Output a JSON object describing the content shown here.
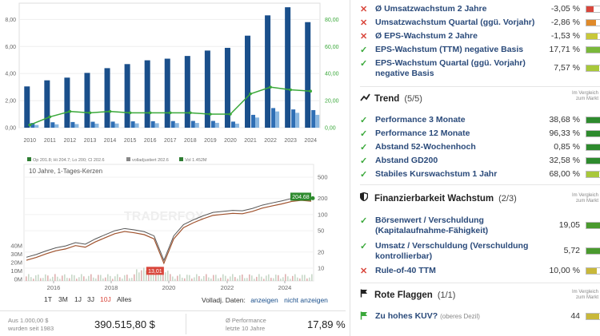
{
  "colors": {
    "bar_dark": "#1a4f8b",
    "bar_mid": "#2f6fb5",
    "bar_light": "#8ab7e0",
    "line_green": "#3aa83a",
    "fill_dark_green": "#2e8b2e",
    "fill_yellow_green": "#a8c83a",
    "fill_orange": "#e08a2a",
    "fill_red": "#d9463b",
    "fill_lightgreen": "#7ab83a"
  },
  "chart_data": [
    {
      "type": "bar",
      "categories": [
        "2010",
        "2011",
        "2012",
        "2013",
        "2014",
        "2015",
        "2016",
        "2017",
        "2018",
        "2019",
        "2020",
        "2021",
        "2022",
        "2023",
        "2024"
      ],
      "series": [
        {
          "values": [
            3.05,
            3.5,
            3.7,
            4.05,
            4.4,
            4.7,
            4.98,
            5.1,
            5.3,
            5.7,
            5.9,
            6.8,
            8.3,
            8.9,
            7.8
          ]
        },
        {
          "values": [
            0.35,
            0.4,
            0.42,
            0.44,
            0.45,
            0.47,
            0.48,
            0.49,
            0.5,
            0.5,
            0.45,
            0.95,
            1.45,
            1.35,
            1.3
          ]
        },
        {
          "values": [
            0.2,
            0.25,
            0.27,
            0.3,
            0.31,
            0.32,
            0.33,
            0.34,
            0.35,
            0.36,
            0.3,
            0.75,
            1.2,
            1.1,
            0.95
          ]
        }
      ],
      "line": {
        "values": [
          2,
          8,
          12,
          11,
          12,
          11,
          11,
          11,
          11,
          10,
          10,
          25,
          30,
          28,
          27
        ]
      },
      "y_left_ticks": [
        "0,00",
        "2,00",
        "4,00",
        "6,00",
        "8,00"
      ],
      "y_right_ticks": [
        "0,00",
        "20,00",
        "40,00",
        "60,00",
        "80,00"
      ],
      "ylim": [
        0,
        9.2
      ],
      "ylim_right": [
        0,
        92
      ]
    },
    {
      "type": "line",
      "title": "10 Jahre, 1-Tages-Kerzen",
      "legend": [
        "Op 201.8; Hi 204.7; Lo 200; Cl 202.6",
        "volladjustiert 202.6",
        "Vol 1.452M"
      ],
      "x_ticks": [
        "2016",
        "2018",
        "2020",
        "2022",
        "2024"
      ],
      "y_ticks_right": [
        "500",
        "200",
        "100",
        "50",
        "20",
        "10"
      ],
      "vol_ticks": [
        "40M",
        "30M",
        "20M",
        "10M",
        "0M"
      ],
      "last_label": "204.68",
      "low_label": "13,01",
      "watermark": "TRADERFOX",
      "series_points": [
        16,
        18,
        21,
        24,
        26,
        30,
        28,
        35,
        42,
        50,
        55,
        52,
        48,
        40,
        14,
        40,
        65,
        80,
        95,
        110,
        115,
        120,
        118,
        130,
        150,
        165,
        180,
        200,
        210,
        202
      ]
    }
  ],
  "range_buttons": [
    "1T",
    "3M",
    "1J",
    "3J",
    "10J",
    "Alles"
  ],
  "volladj": {
    "label": "Volladj. Daten:",
    "on": "anzeigen",
    "off": "nicht anzeigen"
  },
  "summary": {
    "invest_label_1": "Aus 1.000,00 $",
    "invest_label_2": "wurden seit 1983",
    "invest_value": "390.515,80 $",
    "perf_label_1": "Ø Performance",
    "perf_label_2": "letzte 10 Jahre",
    "perf_value": "17,89 %"
  },
  "growth_rows": [
    {
      "mark": "cross",
      "text": "Ø Umsatzwachstum 2 Jahre",
      "value": "-3,05 %",
      "fill": 0.35,
      "color": "#d9463b"
    },
    {
      "mark": "cross",
      "text": "Umsatzwachstum Quartal (ggü. Vorjahr)",
      "value": "-2,86 %",
      "fill": 0.45,
      "color": "#e08a2a"
    },
    {
      "mark": "cross",
      "text": "Ø EPS-Wachstum 2 Jahre",
      "value": "-1,53 %",
      "fill": 0.55,
      "color": "#c8c83a"
    },
    {
      "mark": "check",
      "text": "EPS-Wachstum (TTM) negative Basis",
      "value": "17,71 %",
      "fill": 0.75,
      "color": "#7ab83a"
    },
    {
      "mark": "check",
      "text": "EPS-Wachstum Quartal (ggü. Vorjahr)",
      "text2": "negative Basis",
      "value": "7,57 %",
      "fill": 0.6,
      "color": "#a8c83a"
    }
  ],
  "trend": {
    "title": "Trend",
    "count": "(5/5)",
    "compare": [
      "Im Vergleich",
      "zum Markt"
    ],
    "rows": [
      {
        "mark": "check",
        "text": "Performance 3 Monate",
        "value": "38,68 %",
        "fill": 1.0,
        "color": "#2e8b2e"
      },
      {
        "mark": "check",
        "text": "Performance 12 Monate",
        "value": "96,33 %",
        "fill": 1.0,
        "color": "#2e8b2e"
      },
      {
        "mark": "check",
        "text": "Abstand 52-Wochenhoch",
        "value": "0,85 %",
        "fill": 1.0,
        "color": "#2e8b2e"
      },
      {
        "mark": "check",
        "text": "Abstand GD200",
        "value": "32,58 %",
        "fill": 1.0,
        "color": "#2e8b2e"
      },
      {
        "mark": "check",
        "text": "Stabiles Kurswachstum 1 Jahr",
        "value": "68,00 %",
        "fill": 0.6,
        "color": "#a8c83a"
      }
    ]
  },
  "finance": {
    "title": "Finanzierbarkeit Wachstum",
    "count": "(2/3)",
    "compare": [
      "Im Vergleich",
      "zum Markt"
    ],
    "rows": [
      {
        "mark": "check",
        "text": "Börsenwert / Verschuldung",
        "text2": "(Kapitalaufnahme-Fähigkeit)",
        "value": "19,05",
        "fill": 0.85,
        "color": "#4a9a2e"
      },
      {
        "mark": "check",
        "text": "Umsatz / Verschuldung (Verschuldung",
        "text2": "kontrollierbar)",
        "value": "5,72",
        "fill": 0.85,
        "color": "#4a9a2e"
      },
      {
        "mark": "cross",
        "text": "Rule-of-40 TTM",
        "value": "10,00 %",
        "fill": 0.5,
        "color": "#c8b83a"
      }
    ]
  },
  "flags": {
    "title": "Rote Flaggen",
    "count": "(1/1)",
    "compare": [
      "Im Vergleich",
      "zum Markt"
    ],
    "row": {
      "text": "Zu hohes KUV?",
      "sub": "(oberes Dezil)",
      "value": "44",
      "fill": 0.6,
      "color": "#c8b83a"
    }
  }
}
